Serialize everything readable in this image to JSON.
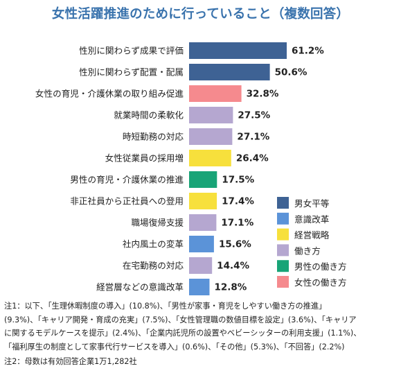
{
  "title": "女性活躍推進のために行っていること（複数回答）",
  "chart_data": {
    "type": "bar",
    "orientation": "horizontal",
    "value_format": "percent",
    "xlim": [
      0,
      61.2
    ],
    "grid": false,
    "legend_position": "right",
    "categories": [
      "性別に関わらず成果で評価",
      "性別に関わらず配置・配属",
      "女性の育児・介護休業の取り組み促進",
      "就業時間の柔軟化",
      "時短勤務の対応",
      "女性従業員の採用増",
      "男性の育児・介護休業の推進",
      "非正社員から正社員への登用",
      "職場復帰支援",
      "社内風土の変革",
      "在宅勤務の対応",
      "経営層などの意識改革"
    ],
    "values": [
      61.2,
      50.6,
      32.8,
      27.5,
      27.1,
      26.4,
      17.5,
      17.4,
      17.1,
      15.6,
      14.4,
      12.8
    ],
    "value_labels": [
      "61.2%",
      "50.6%",
      "32.8%",
      "27.5%",
      "27.1%",
      "26.4%",
      "17.5%",
      "17.4%",
      "17.1%",
      "15.6%",
      "14.4%",
      "12.8%"
    ],
    "groups": [
      "男女平等",
      "男女平等",
      "女性の働き方",
      "働き方",
      "働き方",
      "経営戦略",
      "男性の働き方",
      "経営戦略",
      "働き方",
      "意識改革",
      "働き方",
      "意識改革"
    ],
    "legend": [
      {
        "name": "男女平等",
        "color": "#3e6294"
      },
      {
        "name": "意識改革",
        "color": "#5b93d8"
      },
      {
        "name": "経営戦略",
        "color": "#f7e03c"
      },
      {
        "name": "働き方",
        "color": "#b5a7d0"
      },
      {
        "name": "男性の働き方",
        "color": "#18a477"
      },
      {
        "name": "女性の働き方",
        "color": "#f58a8e"
      }
    ]
  },
  "notes": {
    "note1_lines": [
      "注1：以下、「生理休暇制度の導入」(10.8%)、「男性が家事・育児をしやすい働き方の推進」",
      "(9.3%)、「キャリア開発・育成の充実」(7.5%)、「女性管理職の数値目標を設定」(3.6%)、「キャリア",
      "に関するモデルケースを提示」(2.4%)、「企業内託児所の設置やベビーシッターの利用支援」(1.1%)、",
      "「福利厚生の制度として家事代行サービスを導入」(0.6%)、「その他」(5.3%)、「不回答」(2.2%)"
    ],
    "note2": "注2：母数は有効回答企業1万1,282社"
  }
}
